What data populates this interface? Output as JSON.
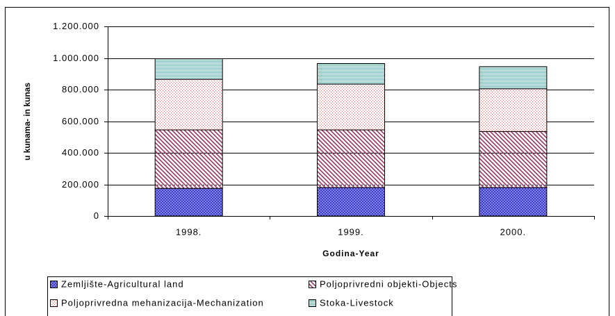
{
  "chart_data": {
    "type": "stacked_bar",
    "x_label": "Godina-Year",
    "y_label": "u kunama- in kunas",
    "categories": [
      "1998.",
      "1999.",
      "2000."
    ],
    "series": [
      {
        "name": "Zemljište-Agricultural land",
        "color": "#3333cc",
        "pattern": "crosshatch",
        "values": [
          175000,
          180000,
          180000
        ]
      },
      {
        "name": "Poljoprivredni objekti-Objects",
        "color": "#993366",
        "pattern": "diagonal",
        "values": [
          370000,
          365000,
          355000
        ]
      },
      {
        "name": "Poljoprivredna mehanizacija-Mechanization",
        "color": "#ff6666",
        "pattern": "dots",
        "values": [
          320000,
          290000,
          270000
        ]
      },
      {
        "name": "Stoka-Livestock",
        "color": "#339999",
        "pattern": "horizontal",
        "values": [
          130000,
          130000,
          140000
        ]
      }
    ],
    "ylim": [
      0,
      1200000
    ],
    "yticks": [
      0,
      {
        "value": 200000,
        "label": "200.000"
      },
      {
        "value": 400000,
        "label": "400.000"
      },
      {
        "value": 600000,
        "label": "600.000"
      },
      {
        "value": 800000,
        "label": "800.000"
      },
      {
        "value": 1000000,
        "label": "1.000.000"
      },
      {
        "value": 1200000,
        "label": "1.200.000"
      }
    ],
    "grid": true,
    "legend": "bottom"
  }
}
